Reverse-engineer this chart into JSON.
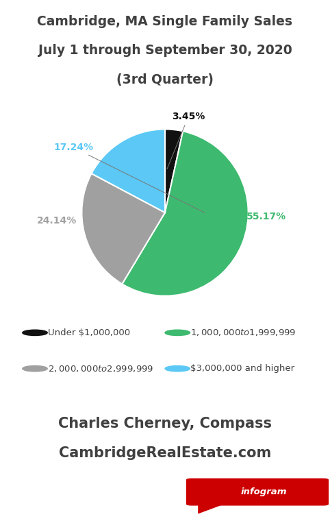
{
  "title_line1": "Cambridge, MA Single Family Sales",
  "title_line2": "July 1 through September 30, 2020",
  "title_line3": "(3rd Quarter)",
  "slices": [
    3.45,
    55.17,
    24.14,
    17.24
  ],
  "colors": [
    "#111111",
    "#3dba6f",
    "#a0a0a0",
    "#5bc8f5"
  ],
  "labels": [
    "3.45%",
    "55.17%",
    "24.14%",
    "17.24%"
  ],
  "label_colors": [
    "#111111",
    "#3dba6f",
    "#a0a0a0",
    "#5bc8f5"
  ],
  "legend_labels": [
    "Under $1,000,000",
    "$1,000,000 to $1,999,999",
    "$2,000,000 to $2,999,999",
    "$3,000,000 and higher"
  ],
  "legend_colors": [
    "#111111",
    "#3dba6f",
    "#a0a0a0",
    "#5bc8f5"
  ],
  "footer_line1": "Charles Cherney, Compass",
  "footer_line2": "CambridgeRealEstate.com",
  "background_color": "#ffffff",
  "title_color": "#404040",
  "footer_color": "#404040",
  "legend_text_color": "#404040",
  "startangle": 90
}
